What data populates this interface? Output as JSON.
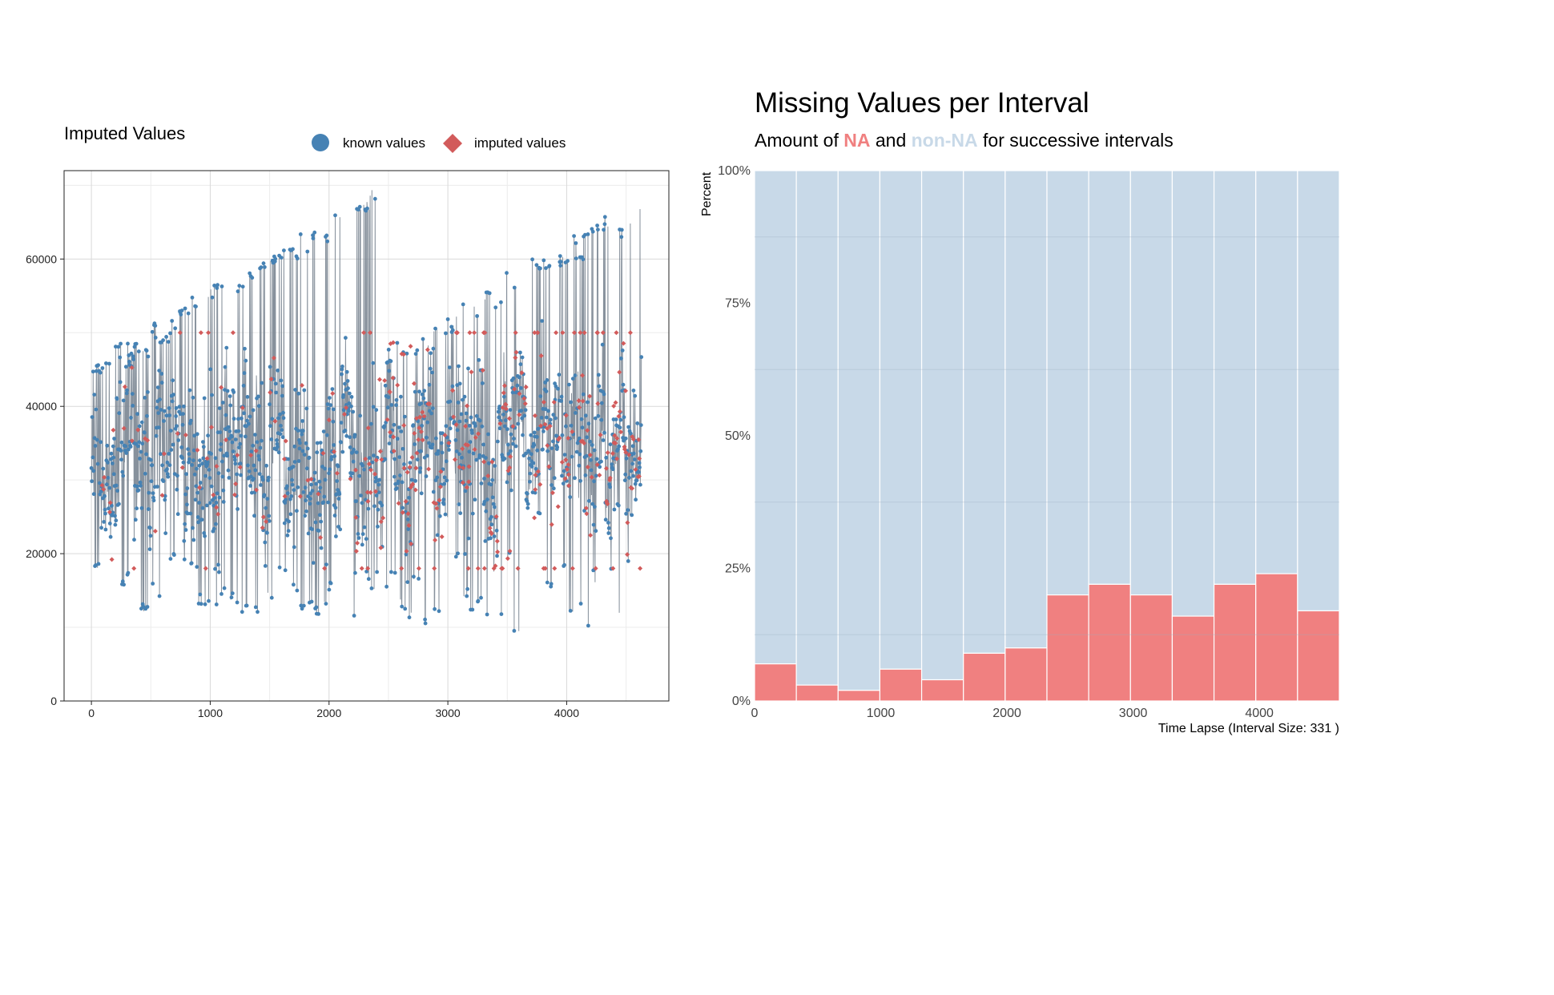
{
  "colors": {
    "known": "#4682b4",
    "imputed": "#d25b5b",
    "line": "#7a8591",
    "na": "#f08080",
    "non_na": "#c8d9e8"
  },
  "chart_data": [
    {
      "type": "scatter",
      "title": "Imputed Values",
      "legend": {
        "known": "known values",
        "imputed": "imputed values",
        "placement": "top"
      },
      "xlabel": "",
      "ylabel": "",
      "xlim": [
        -230,
        4860
      ],
      "ylim": [
        0,
        72000
      ],
      "xticks": [
        0,
        1000,
        2000,
        3000,
        4000
      ],
      "yticks": [
        0,
        20000,
        40000,
        60000
      ],
      "n_points": 4632,
      "grid": true
    },
    {
      "type": "bar",
      "stacked": true,
      "title": "Missing Values per Interval",
      "subtitle": {
        "prefix": "Amount of ",
        "na": "NA",
        "middle": " and ",
        "non_na": "non-NA",
        "suffix": " for successive intervals"
      },
      "xlabel": "Time Lapse (Interval Size: 331 )",
      "ylabel": "Percent",
      "interval_size": 331,
      "xlim": [
        0,
        4634
      ],
      "xticks": [
        0,
        1000,
        2000,
        3000,
        4000
      ],
      "yticks": [
        "0%",
        "25%",
        "50%",
        "75%",
        "100%"
      ],
      "ylim": [
        0,
        100
      ],
      "series": [
        {
          "name": "NA",
          "values": [
            7,
            3,
            2,
            6,
            4,
            9,
            10,
            20,
            22,
            20,
            16,
            22,
            24,
            17
          ]
        },
        {
          "name": "non-NA",
          "values": [
            93,
            97,
            98,
            94,
            96,
            91,
            90,
            80,
            78,
            80,
            84,
            78,
            76,
            83
          ]
        }
      ]
    }
  ]
}
